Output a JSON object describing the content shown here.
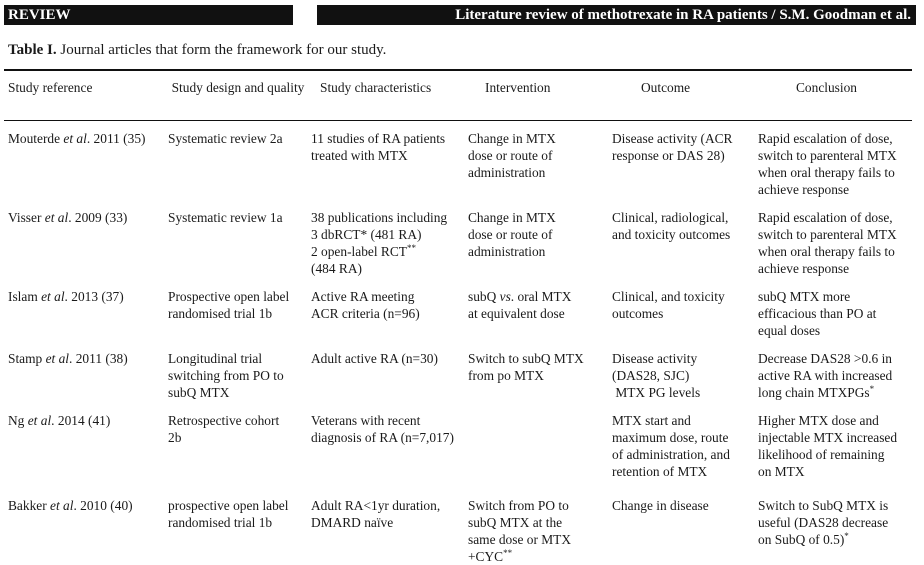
{
  "header": {
    "left": "REVIEW",
    "right": "Literature review of methotrexate in RA patients / S.M. Goodman et al."
  },
  "caption": {
    "label": "Table I.",
    "text": "Journal articles that form the framework for our study."
  },
  "columns": [
    "Study reference",
    "Study design and quality",
    "Study characteristics",
    "Intervention",
    "Outcome",
    "Conclusion"
  ],
  "rows": [
    {
      "reference": {
        "author": "Mouterde",
        "etal": "et al",
        "rest": ". 2011 (35)"
      },
      "design": [
        "Systematic review 2a"
      ],
      "characteristics": [
        "11 studies of RA patients",
        "treated with MTX"
      ],
      "intervention": [
        "Change in MTX",
        "dose or route of",
        "administration"
      ],
      "outcome": [
        "Disease activity (ACR",
        "response or DAS 28)"
      ],
      "conclusion": [
        "Rapid escalation of dose,",
        "switch to parenteral MTX",
        "when oral therapy fails to",
        "achieve response"
      ]
    },
    {
      "reference": {
        "author": "Visser",
        "etal": "et al",
        "rest": ". 2009 (33)"
      },
      "design": [
        "Systematic review 1a"
      ],
      "characteristics": [
        "38 publications including",
        "3 dbRCT* (481 RA)",
        "2 open-label RCT",
        "(484 RA)"
      ],
      "characteristics_sup": "**",
      "intervention": [
        "Change in MTX",
        "dose or route of",
        "administration"
      ],
      "outcome": [
        "Clinical, radiological,",
        "and toxicity outcomes"
      ],
      "conclusion": [
        "Rapid escalation of dose,",
        "switch to parenteral MTX",
        "when oral therapy fails to",
        "achieve response"
      ]
    },
    {
      "reference": {
        "author": "Islam",
        "etal": "et al",
        "rest": ". 2013 (37)"
      },
      "design": [
        "Prospective open label",
        "randomised trial 1b"
      ],
      "characteristics": [
        "Active RA meeting",
        "ACR criteria (n=96)"
      ],
      "intervention_parts": {
        "a": "subQ ",
        "b": "vs",
        "c": ". oral MTX"
      },
      "intervention": [
        "at equivalent dose"
      ],
      "outcome": [
        "Clinical, and toxicity",
        "outcomes"
      ],
      "conclusion": [
        "subQ MTX  more",
        "efficacious than PO at",
        "equal doses"
      ]
    },
    {
      "reference": {
        "author": "Stamp",
        "etal": "et al",
        "rest": ".  2011 (38)"
      },
      "design": [
        "Longitudinal trial",
        "switching from PO to",
        "subQ MTX"
      ],
      "characteristics": [
        "Adult active RA (n=30)"
      ],
      "intervention": [
        "Switch to subQ MTX",
        "from po MTX"
      ],
      "outcome": [
        "Disease activity",
        "(DAS28, SJC)",
        " MTX PG levels"
      ],
      "conclusion": [
        "Decrease DAS28 >0.6 in",
        "active RA with increased",
        "long chain MTXPGs"
      ],
      "conclusion_sup": "*"
    },
    {
      "reference": {
        "author": "Ng",
        "etal": "et al",
        "rest": ". 2014 (41)"
      },
      "design": [
        "Retrospective cohort",
        "2b"
      ],
      "characteristics": [
        "Veterans with recent",
        "diagnosis of RA (n=7,017)"
      ],
      "intervention": [],
      "outcome": [
        "MTX start and",
        "maximum dose, route",
        "of administration, and",
        "retention of MTX"
      ],
      "conclusion": [
        "Higher MTX dose and",
        "injectable MTX increased",
        "likelihood of remaining",
        "on MTX"
      ]
    },
    {
      "reference": {
        "author": "Bakker",
        "etal": "et al",
        "rest": ". 2010 (40)"
      },
      "design": [
        "prospective open label",
        "randomised trial 1b"
      ],
      "characteristics": [
        "Adult RA<1yr duration,",
        "DMARD naïve"
      ],
      "intervention": [
        "Switch from PO to",
        "subQ MTX at the",
        "same dose or MTX",
        "+CYC"
      ],
      "intervention_sup": "**",
      "outcome": [
        "Change in disease"
      ],
      "conclusion": [
        "Switch to SubQ MTX is",
        "useful (DAS28 decrease",
        "on SubQ of 0.5)"
      ],
      "conclusion_sup": "*"
    }
  ]
}
